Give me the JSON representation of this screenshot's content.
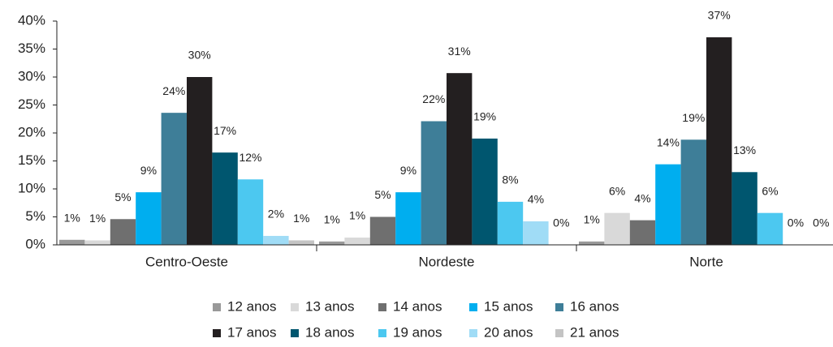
{
  "chart_data": {
    "type": "bar",
    "categories": [
      "Centro-Oeste",
      "Nordeste",
      "Norte"
    ],
    "ylim": [
      0,
      40
    ],
    "yticks": [
      {
        "value": 0,
        "label": "0%"
      },
      {
        "value": 5,
        "label": "5%"
      },
      {
        "value": 10,
        "label": "10%"
      },
      {
        "value": 15,
        "label": "15%"
      },
      {
        "value": 20,
        "label": "20%"
      },
      {
        "value": 25,
        "label": "25%"
      },
      {
        "value": 30,
        "label": "30%"
      },
      {
        "value": 35,
        "label": "35%"
      },
      {
        "value": 40,
        "label": "40%"
      }
    ],
    "grid": false,
    "legend": "bottom",
    "series": [
      {
        "name": "12 anos",
        "color": "#999999",
        "values": [
          0.9,
          0.6,
          0.6
        ],
        "value_labels": [
          "1%",
          "1%",
          "1%"
        ]
      },
      {
        "name": "13 anos",
        "color": "#d9d9d9",
        "values": [
          0.8,
          1.3,
          5.7
        ],
        "value_labels": [
          "1%",
          "1%",
          "6%"
        ]
      },
      {
        "name": "14 anos",
        "color": "#6f6f6f",
        "values": [
          4.6,
          5.0,
          4.4
        ],
        "value_labels": [
          "5%",
          "5%",
          "4%"
        ]
      },
      {
        "name": "15 anos",
        "color": "#00aeef",
        "values": [
          9.4,
          9.4,
          14.4
        ],
        "value_labels": [
          "9%",
          "9%",
          "14%"
        ]
      },
      {
        "name": "16 anos",
        "color": "#3e7e98",
        "values": [
          23.6,
          22.1,
          18.8
        ],
        "value_labels": [
          "24%",
          "22%",
          "19%"
        ]
      },
      {
        "name": "17 anos",
        "color": "#231f20",
        "values": [
          30.0,
          30.7,
          37.1
        ],
        "value_labels": [
          "30%",
          "31%",
          "37%"
        ]
      },
      {
        "name": "18 anos",
        "color": "#00566f",
        "values": [
          16.5,
          19.0,
          13.0
        ],
        "value_labels": [
          "17%",
          "19%",
          "13%"
        ]
      },
      {
        "name": "19 anos",
        "color": "#4cc8f0",
        "values": [
          11.7,
          7.7,
          5.7
        ],
        "value_labels": [
          "12%",
          "8%",
          "6%"
        ]
      },
      {
        "name": "20 anos",
        "color": "#a0dcf6",
        "values": [
          1.6,
          4.2,
          0
        ],
        "value_labels": [
          "2%",
          "4%",
          "0%"
        ]
      },
      {
        "name": "21 anos",
        "color": "#c4c4c4",
        "values": [
          0.8,
          0,
          0
        ],
        "value_labels": [
          "1%",
          "0%",
          "0%"
        ]
      }
    ]
  }
}
